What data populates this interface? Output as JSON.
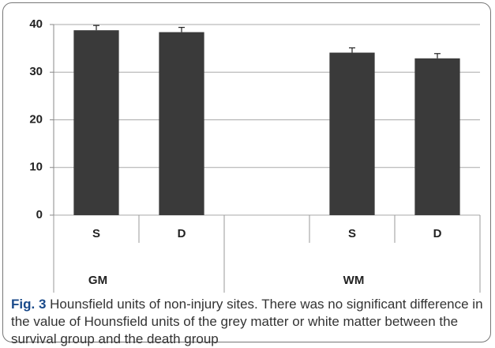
{
  "chart_data": {
    "type": "bar",
    "categories": [
      "S",
      "D",
      null,
      "S",
      "D"
    ],
    "groups": [
      "GM",
      "WM"
    ],
    "values": [
      38.8,
      38.4,
      null,
      34.1,
      32.9
    ],
    "errors": [
      1.0,
      1.0,
      null,
      1.0,
      1.0
    ],
    "color": "#3a3a3a",
    "ylim": [
      0,
      40
    ],
    "yticks": [
      0,
      10,
      20,
      30,
      40
    ],
    "grid": true
  },
  "caption": {
    "label": "Fig. 3",
    "text": "Hounsfield units of non-injury sites. There was no significant difference in the value of Hounsfield units of the grey matter or white matter between the survival group and the death group"
  }
}
